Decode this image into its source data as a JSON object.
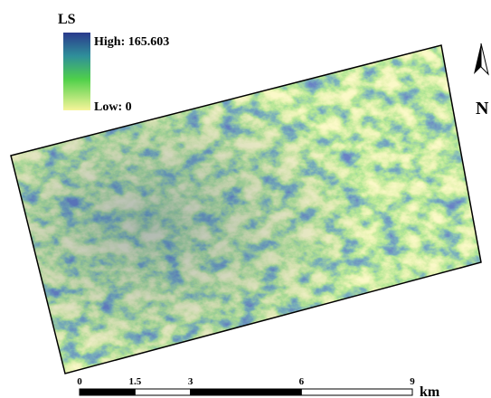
{
  "legend": {
    "title": "LS",
    "high": "High: 165.603",
    "low": "Low: 0"
  },
  "north_arrow": {
    "label": "N"
  },
  "scale_bar": {
    "ticks": [
      0,
      1.5,
      3,
      6,
      9
    ],
    "unit": "km"
  }
}
